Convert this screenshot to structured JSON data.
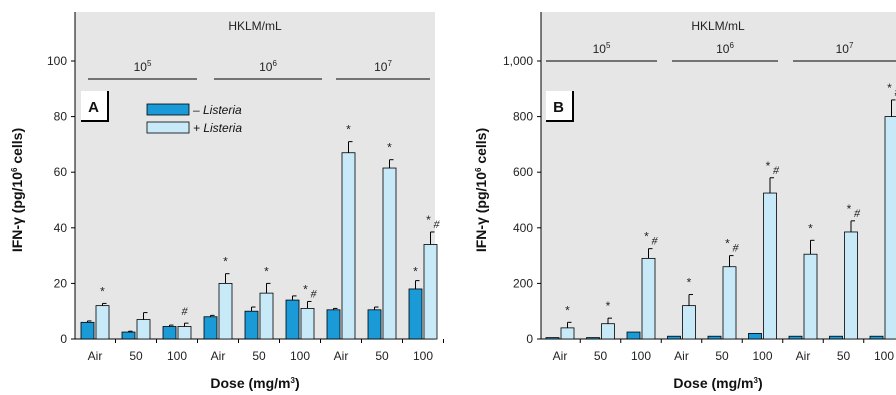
{
  "colors": {
    "minus": "#1a9ad6",
    "plus": "#c8e9f8",
    "panel_bg": "#e6e6e6",
    "stroke": "#000000"
  },
  "legend": {
    "minus": "– Listeria",
    "plus": "+ Listeria"
  },
  "chart_data": [
    {
      "type": "bar",
      "panel_label": "A",
      "top_label": "HKLM/mL",
      "groups": [
        {
          "base": "10",
          "exp": "5"
        },
        {
          "base": "10",
          "exp": "6"
        },
        {
          "base": "10",
          "exp": "7"
        }
      ],
      "categories": [
        "Air",
        "50",
        "100",
        "Air",
        "50",
        "100",
        "Air",
        "50",
        "100"
      ],
      "xlabel": "Dose (mg/m3)",
      "ylabel": "IFN-γ (pg/106 cells)",
      "ylim": [
        0,
        100
      ],
      "yticks": [
        0,
        20,
        40,
        60,
        80,
        100
      ],
      "ytick_labels": [
        "0",
        "20",
        "40",
        "60",
        "80",
        "100"
      ],
      "series": [
        {
          "name": "– Listeria",
          "values": [
            6,
            2.5,
            4.5,
            8,
            10,
            14,
            10.5,
            10.5,
            18
          ],
          "errors": [
            0.5,
            0.3,
            0.5,
            0.5,
            1.5,
            1.5,
            0.5,
            1,
            3
          ]
        },
        {
          "name": "+ Listeria",
          "values": [
            12,
            7,
            4.5,
            20,
            16.5,
            11,
            67,
            61.5,
            34
          ],
          "errors": [
            0.8,
            2.5,
            1.2,
            3.5,
            3.5,
            2.5,
            4,
            3,
            4.5
          ]
        }
      ],
      "annotations": [
        "*",
        "",
        "#",
        "*",
        "*",
        "*#",
        "*",
        "*",
        "*#"
      ],
      "minus_annotations": [
        "",
        "",
        "",
        "",
        "",
        "",
        "",
        "",
        "*"
      ]
    },
    {
      "type": "bar",
      "panel_label": "B",
      "top_label": "HKLM/mL",
      "groups": [
        {
          "base": "10",
          "exp": "5"
        },
        {
          "base": "10",
          "exp": "6"
        },
        {
          "base": "10",
          "exp": "7"
        }
      ],
      "categories": [
        "Air",
        "50",
        "100",
        "Air",
        "50",
        "100",
        "Air",
        "50",
        "100"
      ],
      "xlabel": "Dose (mg/m3)",
      "ylabel": "IFN-γ (pg/106 cells)",
      "ylim": [
        0,
        1100
      ],
      "yticks": [
        0,
        200,
        400,
        600,
        800,
        1000
      ],
      "ytick_labels": [
        "0",
        "200",
        "400",
        "600",
        "800",
        "1,000"
      ],
      "series": [
        {
          "name": "– Listeria",
          "values": [
            5,
            5,
            25,
            10,
            10,
            20,
            10,
            10,
            10
          ],
          "errors": [
            0,
            0,
            0,
            0,
            0,
            0,
            0,
            0,
            0
          ]
        },
        {
          "name": "+ Listeria",
          "values": [
            40,
            55,
            290,
            120,
            260,
            525,
            305,
            385,
            800
          ],
          "errors": [
            20,
            20,
            35,
            40,
            40,
            55,
            50,
            40,
            60
          ]
        }
      ],
      "annotations": [
        "*",
        "*",
        "*#",
        "*",
        "*#",
        "*#",
        "*",
        "*#",
        "*#"
      ],
      "minus_annotations": [
        "",
        "",
        "",
        "",
        "",
        "",
        "",
        "",
        ""
      ]
    }
  ]
}
